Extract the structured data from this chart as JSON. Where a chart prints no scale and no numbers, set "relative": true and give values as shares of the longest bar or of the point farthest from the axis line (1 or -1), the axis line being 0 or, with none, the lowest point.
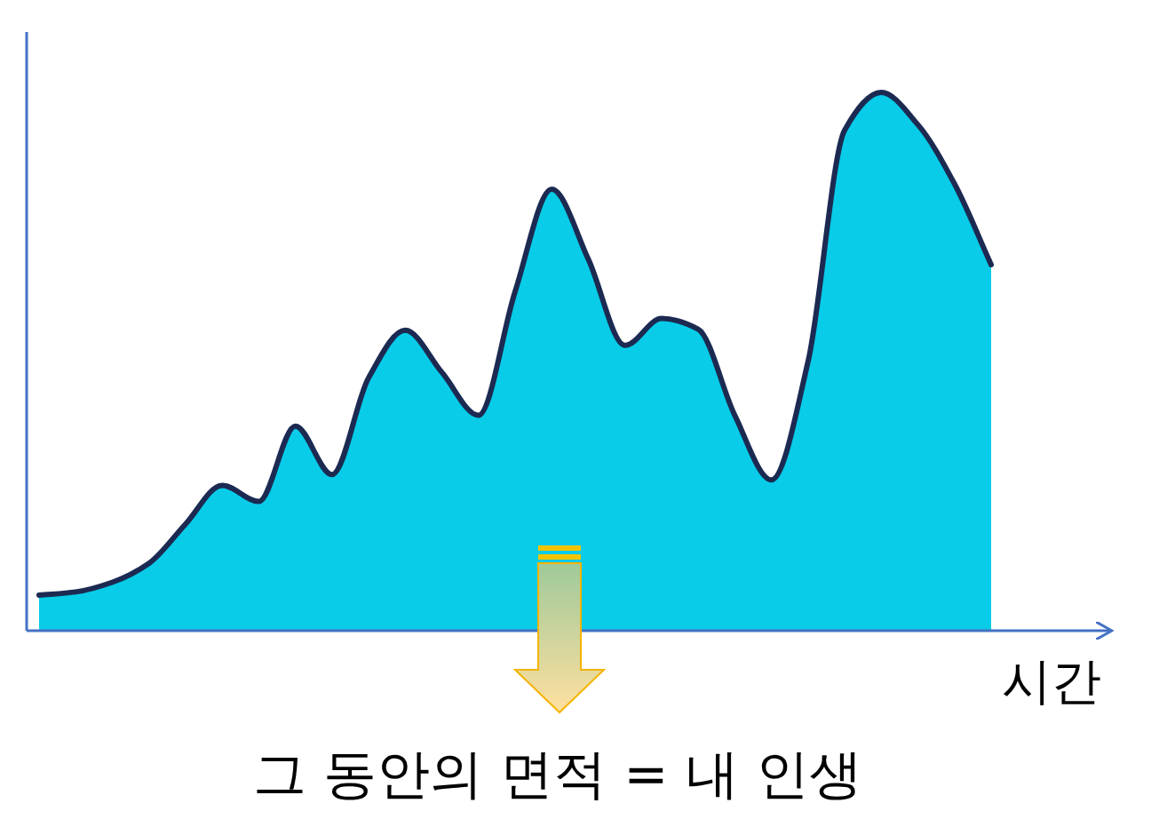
{
  "chart_data": {
    "type": "area",
    "relative": true,
    "categories": [
      null,
      null,
      null,
      null,
      null,
      null,
      null,
      null,
      null,
      null,
      null,
      null,
      null,
      null,
      null,
      null,
      null,
      null,
      null,
      null,
      null,
      null,
      null,
      null,
      null,
      null,
      null
    ],
    "values": [
      0.066,
      0.072,
      0.09,
      0.125,
      0.198,
      0.27,
      0.24,
      0.38,
      0.29,
      0.47,
      0.558,
      0.48,
      0.4,
      0.63,
      0.82,
      0.69,
      0.53,
      0.58,
      0.56,
      0.4,
      0.28,
      0.5,
      0.93,
      1,
      0.94,
      0.83,
      0.68
    ],
    "color": "#08cce8",
    "xlabel": "시간",
    "annotations": [
      "그 동안의 면적 = 내 인생"
    ]
  }
}
